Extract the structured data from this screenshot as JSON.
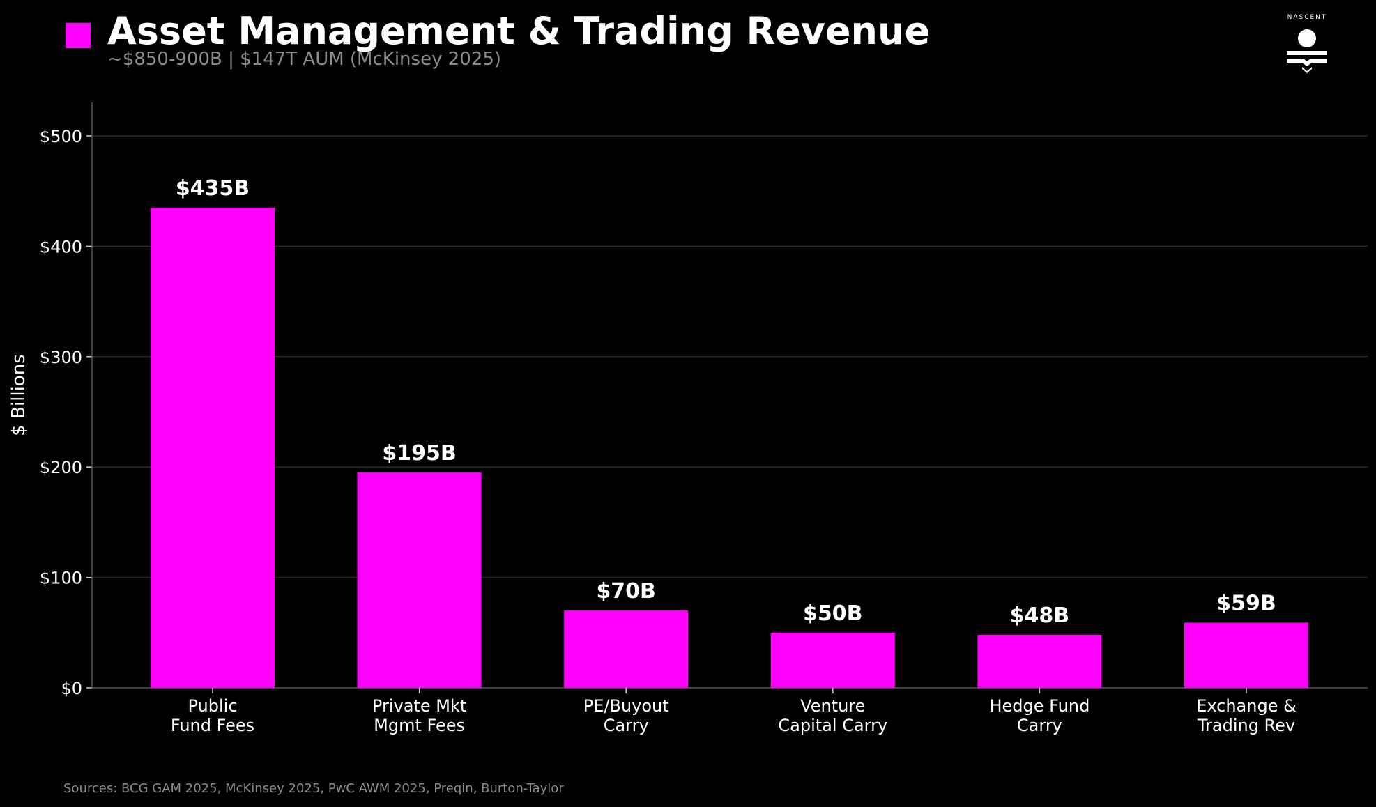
{
  "header": {
    "title": "Asset Management & Trading Revenue",
    "subtitle": "~$850-900B  |  $147T AUM (McKinsey 2025)",
    "logo_text": "NASCENT"
  },
  "footer": {
    "sources": "Sources: BCG GAM 2025, McKinsey 2025, PwC AWM 2025, Preqin, Burton-Taylor"
  },
  "colors": {
    "bar": "#ff00ff",
    "background": "#000000",
    "grid": "#2a2a2a",
    "text": "#ffffff",
    "muted": "#8c8c8c"
  },
  "chart_data": {
    "type": "bar",
    "title": "Asset Management & Trading Revenue",
    "xlabel": "",
    "ylabel": "$ Billions",
    "ylim": [
      0,
      530
    ],
    "grid": true,
    "yticks": [
      0,
      100,
      200,
      300,
      400,
      500
    ],
    "ytick_labels": [
      "$0",
      "$100",
      "$200",
      "$300",
      "$400",
      "$500"
    ],
    "categories": [
      [
        "Public",
        "Fund Fees"
      ],
      [
        "Private Mkt",
        "Mgmt Fees"
      ],
      [
        "PE/Buyout",
        "Carry"
      ],
      [
        "Venture",
        "Capital Carry"
      ],
      [
        "Hedge Fund",
        "Carry"
      ],
      [
        "Exchange &",
        "Trading Rev"
      ]
    ],
    "values": [
      435,
      195,
      70,
      50,
      48,
      59
    ],
    "data_labels": [
      "$435B",
      "$195B",
      "$70B",
      "$50B",
      "$48B",
      "$59B"
    ]
  }
}
